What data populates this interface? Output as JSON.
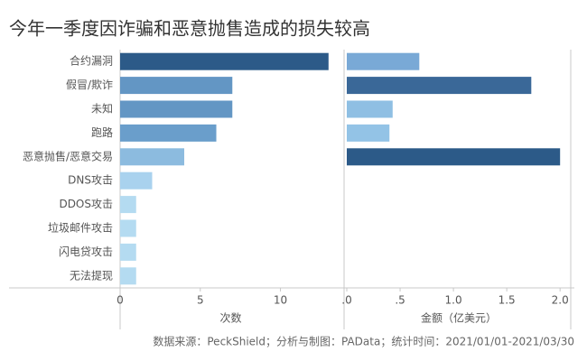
{
  "chart_data": {
    "type": "bar",
    "orientation": "horizontal",
    "title": "今年一季度因诈骗和恶意抛售造成的损失较高",
    "source": "数据来源：PeckShield；分析与制图：PAData；统计时间：2021/01/01-2021/03/30",
    "categories": [
      "合约漏洞",
      "假冒/欺诈",
      "未知",
      "跑路",
      "恶意抛售/恶意交易",
      "DNS攻击",
      "DDOS攻击",
      "垃圾邮件攻击",
      "闪电贷攻击",
      "无法提现"
    ],
    "series": [
      {
        "name": "次数",
        "values": [
          13,
          7,
          7,
          6,
          4,
          2,
          1,
          1,
          1,
          1
        ],
        "colors": [
          "#2c5a88",
          "#6396c4",
          "#6396c4",
          "#6a9ecb",
          "#8cbbdf",
          "#a9d2ee",
          "#b4dbf1",
          "#b4dbf1",
          "#b4dbf1",
          "#b4dbf1"
        ],
        "xlim": [
          0,
          13.8
        ],
        "xticks": [
          0,
          5,
          10
        ]
      },
      {
        "name": "金额（亿美元）",
        "values": [
          0.68,
          1.73,
          0.43,
          0.4,
          2.0,
          null,
          null,
          null,
          null,
          null
        ],
        "colors": [
          "#79a9d6",
          "#3a6898",
          "#8fbfe3",
          "#93c3e6",
          "#2c5a88",
          null,
          null,
          null,
          null,
          null
        ],
        "xlim": [
          0,
          2.1
        ],
        "xticks": [
          {
            "value": 0,
            "label": ".0"
          },
          {
            "value": 0.5,
            "label": ".5"
          },
          {
            "value": 1,
            "label": "1.0"
          },
          1.5,
          {
            "value": 2,
            "label": "2.0"
          }
        ]
      }
    ]
  }
}
